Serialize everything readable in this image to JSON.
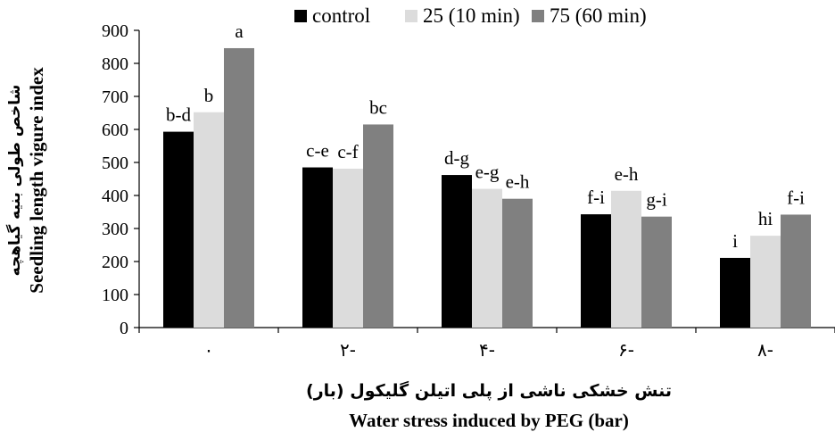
{
  "chart_data": {
    "type": "bar",
    "categories": [
      "۰",
      "۲-",
      "۴-",
      "۶-",
      "۸-"
    ],
    "series": [
      {
        "name": "control",
        "color": "#000000",
        "values": [
          593,
          485,
          462,
          343,
          211
        ],
        "labels": [
          "b-d",
          "c-e",
          "d-g",
          "f-i",
          "i"
        ]
      },
      {
        "name": "25 (10 min)",
        "color": "#dcdcdc",
        "values": [
          652,
          481,
          420,
          414,
          278
        ],
        "labels": [
          "b",
          "c-f",
          "e-g",
          "e-h",
          "hi"
        ]
      },
      {
        "name": "75 (60 min)",
        "color": "#808080",
        "values": [
          846,
          615,
          390,
          336,
          342
        ],
        "labels": [
          "a",
          "bc",
          "e-h",
          "g-i",
          "f-i"
        ]
      }
    ],
    "ylabel_fa": "شاخص طولی بنیه گیاهچه",
    "ylabel_en": "Seedling length vigure index",
    "xlabel_fa": "تنش خشکی ناشی از پلی اتیلن گلیکول (بار)",
    "xlabel_en": "Water stress induced by PEG (bar)",
    "ylim": [
      0,
      900
    ],
    "yticks": [
      0,
      100,
      200,
      300,
      400,
      500,
      600,
      700,
      800,
      900
    ],
    "grid": false,
    "legend": "top"
  }
}
